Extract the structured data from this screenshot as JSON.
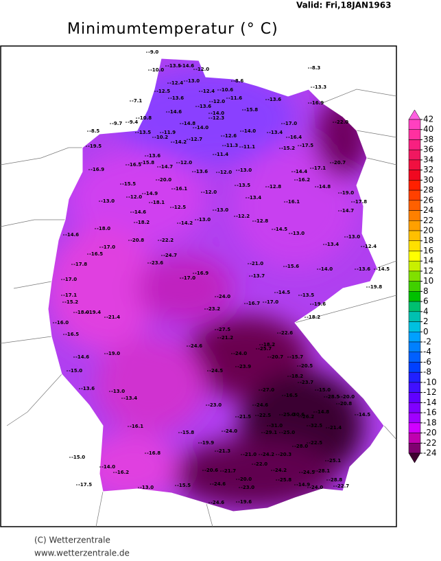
{
  "header": {
    "valid": "Valid:  Fri,18JAN1963",
    "title": "Minimumtemperatur (° C)"
  },
  "legend": {
    "ticks": [
      42,
      40,
      38,
      36,
      34,
      32,
      30,
      28,
      26,
      24,
      22,
      20,
      18,
      16,
      14,
      12,
      10,
      8,
      6,
      4,
      2,
      0,
      -2,
      -4,
      -6,
      -8,
      -10,
      -12,
      -14,
      -16,
      -18,
      -20,
      -22,
      -24
    ],
    "colors": [
      "#ff60e0",
      "#ff40c0",
      "#ff30a0",
      "#f82080",
      "#f01860",
      "#f01040",
      "#f00820",
      "#ff2000",
      "#ff4000",
      "#ff6000",
      "#ff8000",
      "#ffa000",
      "#ffc000",
      "#ffe000",
      "#ffff00",
      "#c8f000",
      "#80e000",
      "#40d000",
      "#00c000",
      "#00c070",
      "#00c0b0",
      "#00c0e0",
      "#00a0ff",
      "#0080ff",
      "#0060ff",
      "#0040ff",
      "#2020ff",
      "#4010ff",
      "#6000ff",
      "#8000ff",
      "#a000ff",
      "#d000ff",
      "#c000b0",
      "#800070",
      "#400030"
    ]
  },
  "stations": [
    "-9.0",
    "-8.3",
    "-10.0",
    "-13.5",
    "-14.6",
    "-12.0",
    "-13.3",
    "-8.6",
    "-12.4",
    "-13.0",
    "-12.5",
    "-12.4",
    "-10.6",
    "-7.1",
    "-13.6",
    "-12.0",
    "-11.6",
    "-13.6",
    "-16.9",
    "-13.6",
    "-14.0",
    "-15.8",
    "-14.6",
    "-10.8",
    "-14.8",
    "-12.3",
    "-17.0",
    "-22.0",
    "-8.5",
    "-9.7",
    "-9.4",
    "-14.0",
    "-12.6",
    "-14.0",
    "-13.4",
    "-13.5",
    "-11.9",
    "-10.2",
    "-14.2",
    "-12.7",
    "-16.4",
    "-19.5",
    "-11.3",
    "-11.1",
    "-15.2",
    "-17.5",
    "-11.4",
    "-20.7",
    "-13.6",
    "-12.0",
    "-16.9",
    "-16.5",
    "-15.8",
    "-14.7",
    "-13.0",
    "-14.4",
    "-17.1",
    "-13.6",
    "-12.0",
    "-20.0",
    "-16.2",
    "-15.5",
    "-16.1",
    "-13.5",
    "-12.8",
    "-14.8",
    "-12.0",
    "-19.0",
    "-17.8",
    "-13.0",
    "-12.0",
    "-14.9",
    "-13.4",
    "-16.1",
    "-18.1",
    "-12.5",
    "-13.0",
    "-14.7",
    "-14.6",
    "-12.2",
    "-14.2",
    "-13.0",
    "-12.8",
    "-18.2",
    "-18.0",
    "-14.6",
    "-14.5",
    "-13.0",
    "-13.0",
    "-20.8",
    "-22.2",
    "-17.0",
    "-13.4",
    "-12.4",
    "-24.7",
    "-16.5",
    "-14.5",
    "-21.0",
    "-15.6",
    "-14.0",
    "-13.6",
    "-17.8",
    "-23.6",
    "-17.0",
    "-16.9",
    "-13.7",
    "-17.0",
    "-14.5",
    "-13.5",
    "-19.8",
    "-17.1",
    "-15.2",
    "-16.7",
    "-17.0",
    "-19.6",
    "-18.2",
    "-19.4",
    "-24.0",
    "-23.2",
    "-21.4",
    "-16.0",
    "-18.0",
    "-27.5",
    "-21.2",
    "-22.6",
    "-16.5",
    "-24.6",
    "-18.2",
    "-25.7",
    "-14.6",
    "-24.0",
    "-20.7",
    "-15.7",
    "-19.0",
    "-23.9",
    "-20.5",
    "-18.2",
    "-24.5",
    "-15.0",
    "-23.7",
    "-13.6",
    "-13.0",
    "-27.0",
    "-15.0",
    "-28.5",
    "-20.0",
    "-20.8",
    "-13.4",
    "-16.5",
    "-25.0",
    "-30.6",
    "-14.8",
    "-14.5",
    "-23.0",
    "-24.6",
    "-22.5",
    "-26.2",
    "-24.0",
    "-32.5",
    "-21.4",
    "-31.0",
    "-29.1",
    "-25.0",
    "-21.5",
    "-16.1",
    "-15.8",
    "-22.5",
    "-28.0",
    "-19.9",
    "-21.3",
    "-21.0",
    "-24.2",
    "-20.3",
    "-14.0",
    "-16.8",
    "-15.0",
    "-22.0",
    "-25.1",
    "-21.7",
    "-20.6",
    "-24.2",
    "-28.1",
    "-24.5",
    "-16.2",
    "-17.5",
    "-20.0",
    "-25.8",
    "-14.9",
    "-28.8",
    "-13.0",
    "-15.5",
    "-24.6",
    "-23.0",
    "-22.7",
    "-24.0",
    "-24.6",
    "-19.6"
  ],
  "footer": {
    "copyright": "(C) Wetterzentrale",
    "url": "www.wetterzentrale.de"
  }
}
